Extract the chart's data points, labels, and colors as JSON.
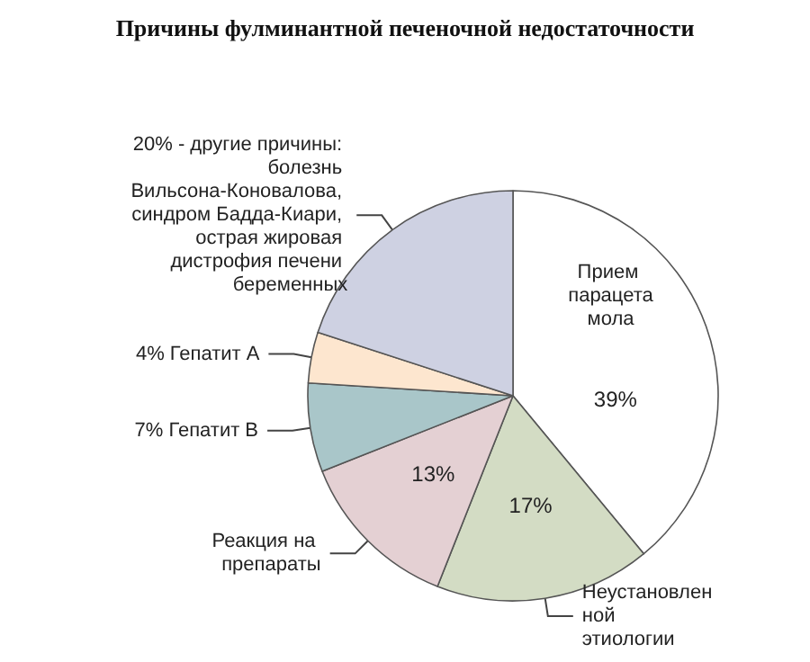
{
  "chart_data": {
    "type": "pie",
    "title": "Причины фулминантной печеночной недостаточности",
    "categories": [
      "Прием парацетамола",
      "Неустановленной этиологии",
      "Реакция на препараты",
      "Гепатит В",
      "Гепатит А",
      "другие причины: болезнь Вильсона-Коновалова, синдром Бадда-Киари, острая жировая дистрофия печени беременных"
    ],
    "values": [
      39,
      17,
      13,
      7,
      4,
      20
    ],
    "value_labels": [
      "39%",
      "17%",
      "13%",
      "7%",
      "4%",
      "20% -"
    ],
    "colors": [
      "#ffffff",
      "#d3dcc4",
      "#e4d0d3",
      "#a9c6c9",
      "#fde6cf",
      "#ced1e2"
    ]
  }
}
